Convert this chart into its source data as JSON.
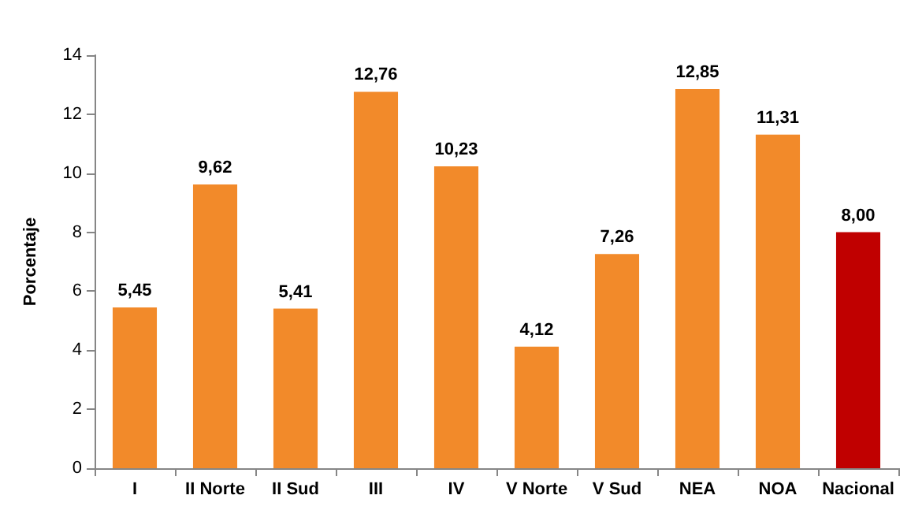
{
  "chart_data": {
    "type": "bar",
    "ylabel": "Porcentaje",
    "categories": [
      "I",
      "II Norte",
      "II Sud",
      "III",
      "IV",
      "V Norte",
      "V Sud",
      "NEA",
      "NOA",
      "Nacional"
    ],
    "values": [
      5.45,
      9.62,
      5.41,
      12.76,
      10.23,
      4.12,
      7.26,
      12.85,
      11.31,
      8.0
    ],
    "colors": [
      "#f28a2a",
      "#f28a2a",
      "#f28a2a",
      "#f28a2a",
      "#f28a2a",
      "#f28a2a",
      "#f28a2a",
      "#f28a2a",
      "#f28a2a",
      "#c00000"
    ],
    "value_labels": [
      "5,45",
      "9,62",
      "5,41",
      "12,76",
      "10,23",
      "4,12",
      "7,26",
      "12,85",
      "11,31",
      "8,00"
    ],
    "ylim": [
      0,
      14
    ],
    "yticks": [
      0,
      2,
      4,
      6,
      8,
      10,
      12,
      14
    ],
    "grid": false
  }
}
